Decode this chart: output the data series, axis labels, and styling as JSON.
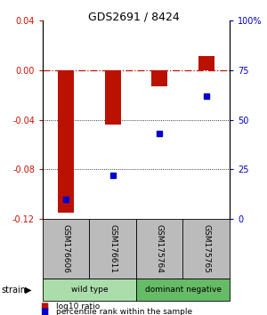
{
  "title": "GDS2691 / 8424",
  "samples": [
    "GSM176606",
    "GSM176611",
    "GSM175764",
    "GSM175765"
  ],
  "log10_ratios": [
    -0.115,
    -0.044,
    -0.013,
    0.011
  ],
  "percentile_ranks": [
    10,
    22,
    43,
    62
  ],
  "groups": [
    {
      "label": "wild type",
      "indices": [
        0,
        1
      ],
      "color": "#aaeeaa"
    },
    {
      "label": "dominant negative",
      "indices": [
        2,
        3
      ],
      "color": "#66cc66"
    }
  ],
  "ylim_left": [
    -0.12,
    0.04
  ],
  "ylim_right": [
    0,
    100
  ],
  "bar_color": "#bb1100",
  "point_color": "#0000cc",
  "zero_line_color": "#cc1100",
  "grid_color": "#000000",
  "label_color_left": "#cc1100",
  "label_color_right": "#0000bb",
  "sample_box_color": "#bbbbbb",
  "wt_color": "#aaddaa",
  "dn_color": "#66bb66"
}
